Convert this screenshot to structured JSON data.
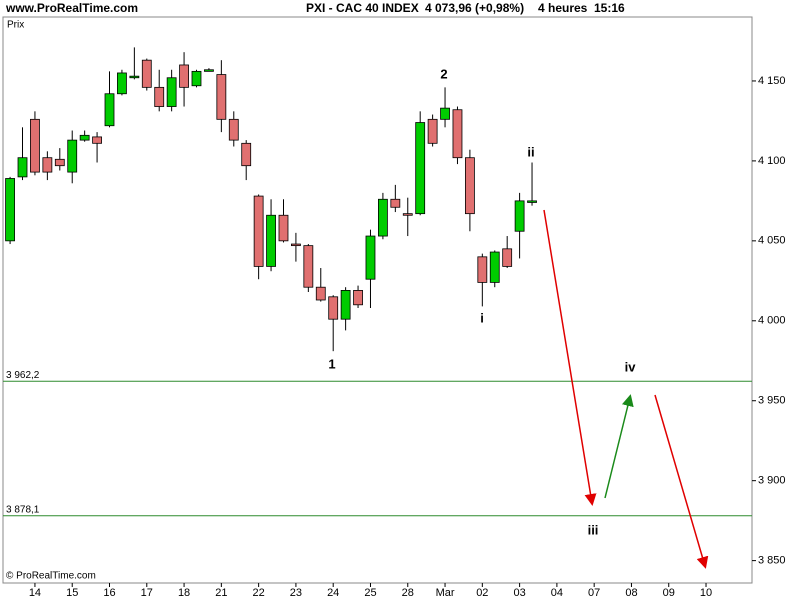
{
  "chart_data": {
    "type": "candlestick",
    "site": "www.ProRealTime.com",
    "title": "PXI - CAC 40 INDEX",
    "price": "4 073,96 (+0,98%)",
    "timeframe": "4 heures",
    "time": "15:16",
    "y_label": "Prix",
    "copyright": "© ProRealTime.com",
    "up_color": "#00cc00",
    "down_color": "#e07070",
    "x": [
      0,
      1,
      2,
      3,
      4,
      5,
      6,
      7,
      8,
      9,
      10,
      11,
      12,
      13,
      14,
      15,
      16,
      17,
      18,
      19,
      20,
      21,
      22,
      23,
      24,
      25,
      26,
      27,
      28,
      29,
      30,
      31,
      32,
      33,
      34,
      35,
      36,
      37,
      38,
      39,
      40,
      41,
      42
    ],
    "open": [
      4050,
      4090,
      4126,
      4102,
      4101,
      4093,
      4113,
      4115,
      4122,
      4142,
      4152,
      4163,
      4146,
      4134,
      4160,
      4147,
      4156,
      4154,
      4126,
      4111,
      4078,
      4034,
      4066,
      4048,
      4047,
      4021,
      4015,
      4001,
      4019,
      4026,
      4053,
      4076,
      4067,
      4067,
      4126,
      4126,
      4132,
      4102,
      4040,
      4024,
      4045,
      4056,
      4074
    ],
    "high": [
      4090,
      4121,
      4131,
      4106,
      4108,
      4119,
      4119,
      4118,
      4156,
      4157,
      4171,
      4164,
      4157,
      4157,
      4168,
      4157,
      4158,
      4163,
      4131,
      4113,
      4079,
      4076,
      4076,
      4055,
      4048,
      4033,
      4016,
      4021,
      4022,
      4057,
      4080,
      4085,
      4077,
      4131,
      4129,
      4146,
      4134,
      4107,
      4042,
      4044,
      4053,
      4080,
      4099
    ],
    "low": [
      4048,
      4088,
      4091,
      4088,
      4094,
      4086,
      4112,
      4099,
      4121,
      4141,
      4151,
      4144,
      4131,
      4131,
      4134,
      4146,
      4156,
      4118,
      4109,
      4088,
      4026,
      4031,
      4049,
      4037,
      4018,
      4012,
      3981,
      3994,
      4008,
      4008,
      4051,
      4068,
      4053,
      4066,
      4109,
      4121,
      4098,
      4056,
      4009,
      4021,
      4033,
      4039,
      4072
    ],
    "close": [
      4089,
      4102,
      4093,
      4093,
      4097,
      4113,
      4116,
      4111,
      4142,
      4155,
      4153,
      4146,
      4134,
      4152,
      4146,
      4156,
      4157,
      4126,
      4113,
      4097,
      4034,
      4066,
      4050,
      4047,
      4021,
      4013,
      4001,
      4019,
      4010,
      4053,
      4076,
      4071,
      4066,
      4124,
      4111,
      4133,
      4102,
      4067,
      4024,
      4043,
      4034,
      4075,
      4075
    ],
    "xlim": [
      -0.57,
      59.7
    ],
    "xticks": [
      {
        "value": 2,
        "label": "14"
      },
      {
        "value": 5,
        "label": "15"
      },
      {
        "value": 8,
        "label": "16"
      },
      {
        "value": 11,
        "label": "17"
      },
      {
        "value": 14,
        "label": "18"
      },
      {
        "value": 17,
        "label": "21"
      },
      {
        "value": 20,
        "label": "22"
      },
      {
        "value": 23,
        "label": "23"
      },
      {
        "value": 26,
        "label": "24"
      },
      {
        "value": 29,
        "label": "25"
      },
      {
        "value": 32,
        "label": "28"
      },
      {
        "value": 35,
        "label": "Mar"
      },
      {
        "value": 38,
        "label": "02"
      },
      {
        "value": 41,
        "label": "03"
      },
      {
        "value": 44,
        "label": "04"
      },
      {
        "value": 47,
        "label": "07"
      },
      {
        "value": 50,
        "label": "08"
      },
      {
        "value": 53,
        "label": "09"
      },
      {
        "value": 56,
        "label": "10"
      }
    ],
    "ylim": [
      3836,
      4190
    ],
    "yticks": [
      {
        "value": 3850,
        "label": "3 850"
      },
      {
        "value": 3900,
        "label": "3 900"
      },
      {
        "value": 3950,
        "label": "3 950"
      },
      {
        "value": 4000,
        "label": "4 000"
      },
      {
        "value": 4050,
        "label": "4 050"
      },
      {
        "value": 4100,
        "label": "4 100"
      },
      {
        "value": 4150,
        "label": "4 150"
      }
    ],
    "hline_color": "#2e8b2e",
    "hlines": [
      {
        "value": 3962.2,
        "label": "3 962,2"
      },
      {
        "value": 3878.1,
        "label": "3 878,1"
      }
    ],
    "annotations": [
      "1",
      "2",
      "i",
      "ii",
      "iii",
      "iv"
    ]
  }
}
